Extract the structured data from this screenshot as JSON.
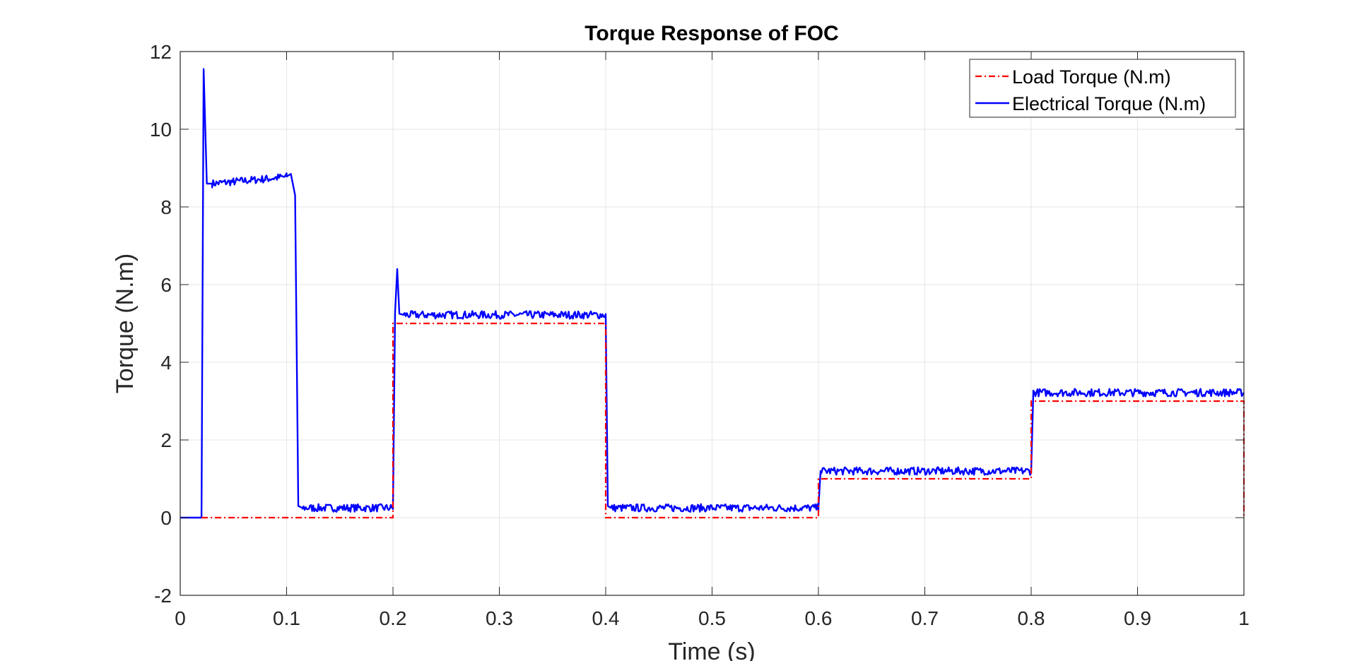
{
  "chart_data": {
    "type": "line",
    "title": "Torque Response of FOC",
    "xlabel": "Time (s)",
    "ylabel": "Torque (N.m)",
    "xlim": [
      0,
      1
    ],
    "ylim": [
      -2,
      12
    ],
    "xticks": [
      0,
      0.1,
      0.2,
      0.3,
      0.4,
      0.5,
      0.6,
      0.7,
      0.8,
      0.9,
      1
    ],
    "xtick_labels": [
      "0",
      "0.1",
      "0.2",
      "0.3",
      "0.4",
      "0.5",
      "0.6",
      "0.7",
      "0.8",
      "0.9",
      "1"
    ],
    "yticks": [
      -2,
      0,
      2,
      4,
      6,
      8,
      10,
      12
    ],
    "ytick_labels": [
      "-2",
      "0",
      "2",
      "4",
      "6",
      "8",
      "10",
      "12"
    ],
    "grid": true,
    "legend_position": "top-right",
    "series": [
      {
        "name": "Load Torque (N.m)",
        "color": "#ff0000",
        "style": "dash-dot",
        "x": [
          0.02,
          0.2,
          0.2,
          0.4,
          0.4,
          0.6,
          0.6,
          0.8,
          0.8,
          1.0,
          1.0
        ],
        "y": [
          0,
          0,
          5,
          5,
          0,
          0,
          1,
          1,
          3,
          3,
          0
        ]
      },
      {
        "name": "Electrical Torque (N.m)",
        "color": "#0000ff",
        "style": "solid",
        "x": [
          0,
          0.02,
          0.022,
          0.025,
          0.03,
          0.05,
          0.08,
          0.1,
          0.104,
          0.108,
          0.111,
          0.115,
          0.2,
          0.202,
          0.204,
          0.206,
          0.21,
          0.4,
          0.402,
          0.405,
          0.6,
          0.602,
          0.8,
          0.802,
          1.0
        ],
        "y": [
          0,
          0,
          11.55,
          8.6,
          8.6,
          8.65,
          8.72,
          8.78,
          8.85,
          8.3,
          0.3,
          0.25,
          0.25,
          5.3,
          6.4,
          5.25,
          5.22,
          5.22,
          0.3,
          0.25,
          0.25,
          1.2,
          1.2,
          3.22,
          3.22
        ],
        "noise_amplitude": 0.1
      }
    ]
  }
}
